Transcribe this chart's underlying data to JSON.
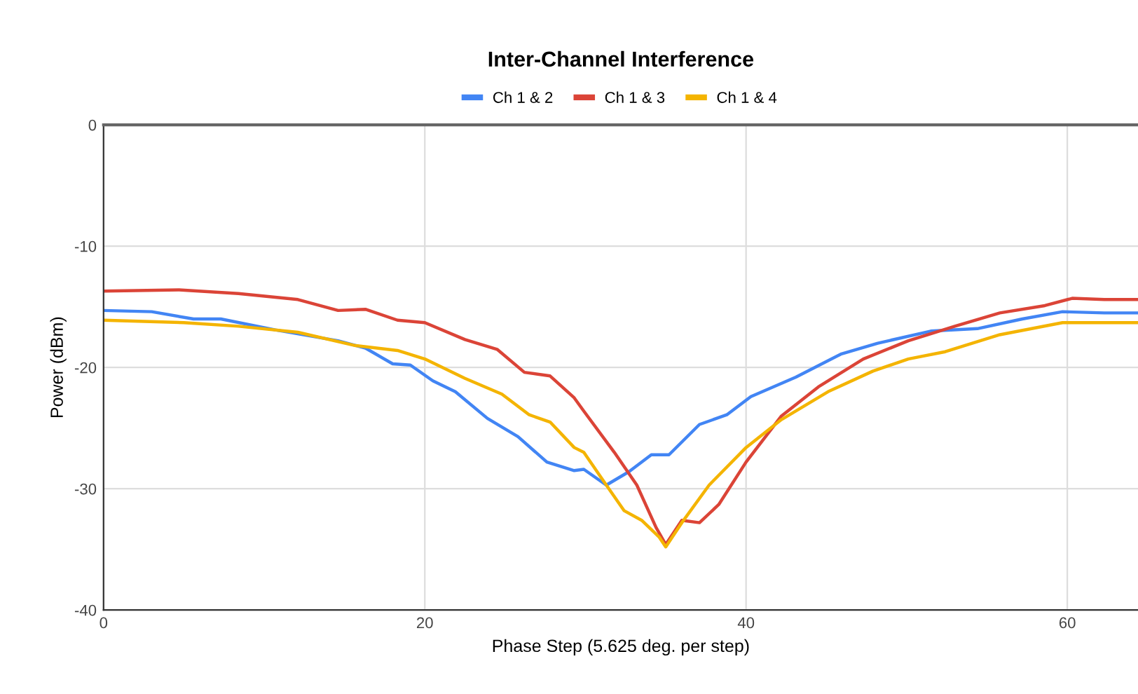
{
  "chart_data": {
    "type": "line",
    "title": "Inter-Channel Interference",
    "xlabel": "Phase Step (5.625 deg. per step)",
    "ylabel": "Power (dBm)",
    "xlim": [
      0,
      64.4
    ],
    "ylim": [
      -40,
      0
    ],
    "xticks": [
      0,
      20,
      40,
      60
    ],
    "yticks": [
      0,
      -10,
      -20,
      -30,
      -40
    ],
    "grid": true,
    "legend": "top",
    "marker": "none",
    "line_style": "solid",
    "series": [
      {
        "name": "Ch 1 & 2",
        "color": "#4285f4",
        "x": [
          0,
          3.0,
          5.6,
          7.3,
          10.7,
          14.6,
          16.3,
          18.0,
          19.1,
          20.5,
          21.9,
          23.9,
          25.8,
          27.6,
          29.3,
          29.9,
          31.3,
          32.7,
          34.1,
          35.2,
          37.1,
          38.8,
          40.3,
          43.1,
          45.9,
          48.2,
          51.5,
          54.4,
          57.2,
          59.7,
          62.3,
          64.4
        ],
        "values": [
          -15.3,
          -15.4,
          -16.0,
          -16.0,
          -16.9,
          -17.8,
          -18.4,
          -19.7,
          -19.8,
          -21.1,
          -22.0,
          -24.2,
          -25.7,
          -27.8,
          -28.5,
          -28.4,
          -29.7,
          -28.6,
          -27.2,
          -27.2,
          -24.7,
          -23.9,
          -22.4,
          -20.8,
          -18.9,
          -18.0,
          -17.0,
          -16.8,
          -16.0,
          -15.4,
          -15.5,
          -15.5
        ]
      },
      {
        "name": "Ch 1 & 3",
        "color": "#db4437",
        "x": [
          0,
          4.7,
          8.4,
          12.1,
          14.6,
          16.3,
          18.3,
          20.0,
          22.5,
          24.5,
          26.2,
          27.8,
          29.3,
          29.9,
          31.8,
          33.2,
          34.4,
          35.0,
          36.0,
          37.1,
          38.3,
          40.0,
          42.2,
          44.5,
          47.3,
          50.1,
          53.0,
          55.8,
          58.6,
          60.3,
          62.3,
          64.4
        ],
        "values": [
          -13.7,
          -13.6,
          -13.9,
          -14.4,
          -15.3,
          -15.2,
          -16.1,
          -16.3,
          -17.7,
          -18.5,
          -20.4,
          -20.7,
          -22.5,
          -23.6,
          -27.0,
          -29.7,
          -33.2,
          -34.6,
          -32.6,
          -32.8,
          -31.3,
          -27.8,
          -24.0,
          -21.6,
          -19.3,
          -17.8,
          -16.6,
          -15.5,
          -14.9,
          -14.3,
          -14.4,
          -14.4
        ]
      },
      {
        "name": "Ch 1 & 4",
        "color": "#f4b400",
        "x": [
          0,
          5.0,
          8.4,
          12.1,
          15.7,
          18.3,
          20.0,
          22.5,
          24.8,
          26.5,
          27.8,
          29.3,
          29.9,
          31.3,
          32.4,
          33.5,
          34.6,
          35.0,
          36.0,
          37.7,
          40.0,
          42.2,
          45.1,
          47.9,
          50.1,
          52.4,
          55.8,
          59.7,
          62.3,
          64.4
        ],
        "values": [
          -16.1,
          -16.3,
          -16.6,
          -17.1,
          -18.2,
          -18.6,
          -19.3,
          -20.9,
          -22.2,
          -23.9,
          -24.5,
          -26.6,
          -27.0,
          -29.7,
          -31.8,
          -32.6,
          -34.0,
          -34.8,
          -32.8,
          -29.7,
          -26.6,
          -24.3,
          -22.0,
          -20.3,
          -19.3,
          -18.7,
          -17.3,
          -16.3,
          -16.3,
          -16.3
        ]
      }
    ]
  }
}
